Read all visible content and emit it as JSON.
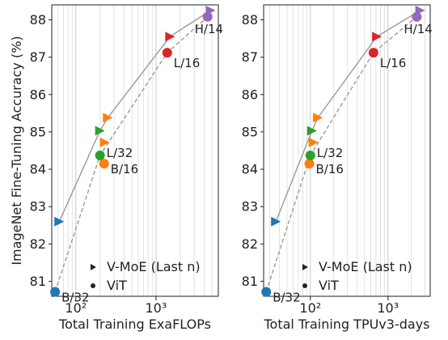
{
  "figure": {
    "ylabel": "ImageNet Fine-Tuning Accuracy (%)",
    "legend": {
      "moe_label": "V-MoE (Last n)",
      "vit_label": "ViT",
      "placement": "bottom-right"
    }
  },
  "chart_data": [
    {
      "type": "scatter",
      "xlabel": "Total Training ExaFLOPs",
      "ylabel": "ImageNet Fine-Tuning Accuracy (%)",
      "xscale": "log",
      "xlim": [
        50,
        6000
      ],
      "ylim": [
        80.6,
        88.4
      ],
      "yticks": [
        81,
        82,
        83,
        84,
        85,
        86,
        87,
        88
      ],
      "xticks": [
        {
          "value": 100,
          "label": "10²"
        },
        {
          "value": 1000,
          "label": "10³"
        }
      ],
      "grid": "vertical minor log gridlines",
      "vit": [
        {
          "label": "B/32",
          "x": 55,
          "y": 80.72,
          "color": "#1f77b4"
        },
        {
          "label": "B/16",
          "x": 225,
          "y": 84.15,
          "color": "#ff7f0e"
        },
        {
          "label": "L/32",
          "x": 200,
          "y": 84.37,
          "color": "#2ca02c"
        },
        {
          "label": "L/16",
          "x": 1380,
          "y": 87.12,
          "color": "#d62728"
        },
        {
          "label": "H/14",
          "x": 4400,
          "y": 88.08,
          "color": "#9467bd"
        }
      ],
      "moe": [
        {
          "x": 62,
          "y": 82.6,
          "color": "#1f77b4"
        },
        {
          "x": 200,
          "y": 85.03,
          "color": "#2ca02c"
        },
        {
          "x": 230,
          "y": 84.72,
          "color": "#ff7f0e"
        },
        {
          "x": 250,
          "y": 85.38,
          "color": "#ff7f0e"
        },
        {
          "x": 1500,
          "y": 87.55,
          "color": "#d62728"
        },
        {
          "x": 4800,
          "y": 88.25,
          "color": "#9467bd"
        }
      ],
      "moe_line": [
        [
          62,
          82.6
        ],
        [
          200,
          85.03
        ],
        [
          250,
          85.38
        ],
        [
          1500,
          87.55
        ],
        [
          4800,
          88.25
        ]
      ],
      "vit_line": [
        [
          55,
          80.72
        ],
        [
          200,
          84.37
        ],
        [
          1380,
          87.12
        ],
        [
          4400,
          88.08
        ]
      ]
    },
    {
      "type": "scatter",
      "xlabel": "Total Training TPUv3-days",
      "ylabel": "",
      "xscale": "log",
      "xlim": [
        25,
        3500
      ],
      "ylim": [
        80.6,
        88.4
      ],
      "yticks": [
        81,
        82,
        83,
        84,
        85,
        86,
        87,
        88
      ],
      "xticks": [
        {
          "value": 100,
          "label": "10²"
        },
        {
          "value": 1000,
          "label": "10³"
        }
      ],
      "grid": "vertical minor log gridlines",
      "vit": [
        {
          "label": "B/32",
          "x": 27,
          "y": 80.72,
          "color": "#1f77b4"
        },
        {
          "label": "B/16",
          "x": 97,
          "y": 84.15,
          "color": "#ff7f0e"
        },
        {
          "label": "L/32",
          "x": 100,
          "y": 84.37,
          "color": "#2ca02c"
        },
        {
          "label": "L/16",
          "x": 650,
          "y": 87.12,
          "color": "#d62728"
        },
        {
          "label": "H/14",
          "x": 2350,
          "y": 88.08,
          "color": "#9467bd"
        }
      ],
      "moe": [
        {
          "x": 36,
          "y": 82.6,
          "color": "#1f77b4"
        },
        {
          "x": 105,
          "y": 85.03,
          "color": "#2ca02c"
        },
        {
          "x": 110,
          "y": 84.72,
          "color": "#ff7f0e"
        },
        {
          "x": 125,
          "y": 85.38,
          "color": "#ff7f0e"
        },
        {
          "x": 720,
          "y": 87.55,
          "color": "#d62728"
        },
        {
          "x": 2600,
          "y": 88.25,
          "color": "#9467bd"
        }
      ],
      "moe_line": [
        [
          36,
          82.6
        ],
        [
          105,
          85.03
        ],
        [
          125,
          85.38
        ],
        [
          720,
          87.55
        ],
        [
          2600,
          88.25
        ]
      ],
      "vit_line": [
        [
          27,
          80.72
        ],
        [
          100,
          84.37
        ],
        [
          650,
          87.12
        ],
        [
          2350,
          88.08
        ]
      ]
    }
  ]
}
